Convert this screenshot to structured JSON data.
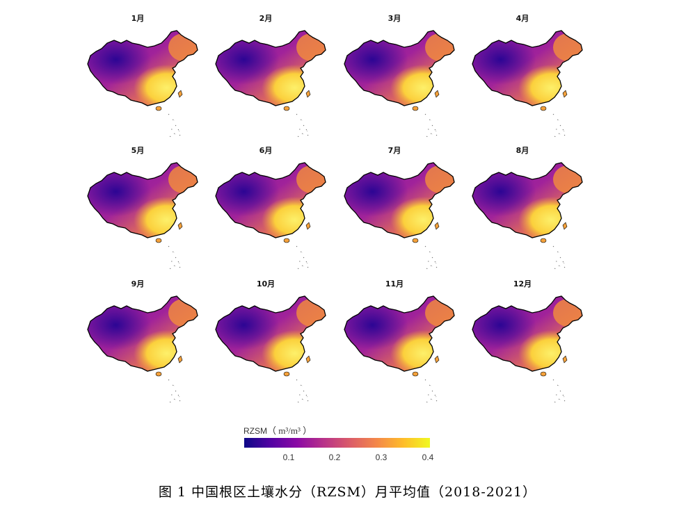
{
  "panels": [
    {
      "month": "1月"
    },
    {
      "month": "2月"
    },
    {
      "month": "3月"
    },
    {
      "month": "4月"
    },
    {
      "month": "5月"
    },
    {
      "month": "6月"
    },
    {
      "month": "7月"
    },
    {
      "month": "8月"
    },
    {
      "month": "9月"
    },
    {
      "month": "10月"
    },
    {
      "month": "11月"
    },
    {
      "month": "12月"
    }
  ],
  "legend": {
    "variable": "RZSM",
    "unit": "m³/m³",
    "ticks": [
      "0.1",
      "0.2",
      "0.3",
      "0.4"
    ],
    "min": 0.0,
    "max": 0.4,
    "colormap": [
      "#0d0887",
      "#5302a3",
      "#8b0aa5",
      "#b83289",
      "#db5c68",
      "#f48849",
      "#febd2a",
      "#f0f921"
    ]
  },
  "caption": "图 1 中国根区土壤水分（RZSM）月平均值（2018-2021）"
}
